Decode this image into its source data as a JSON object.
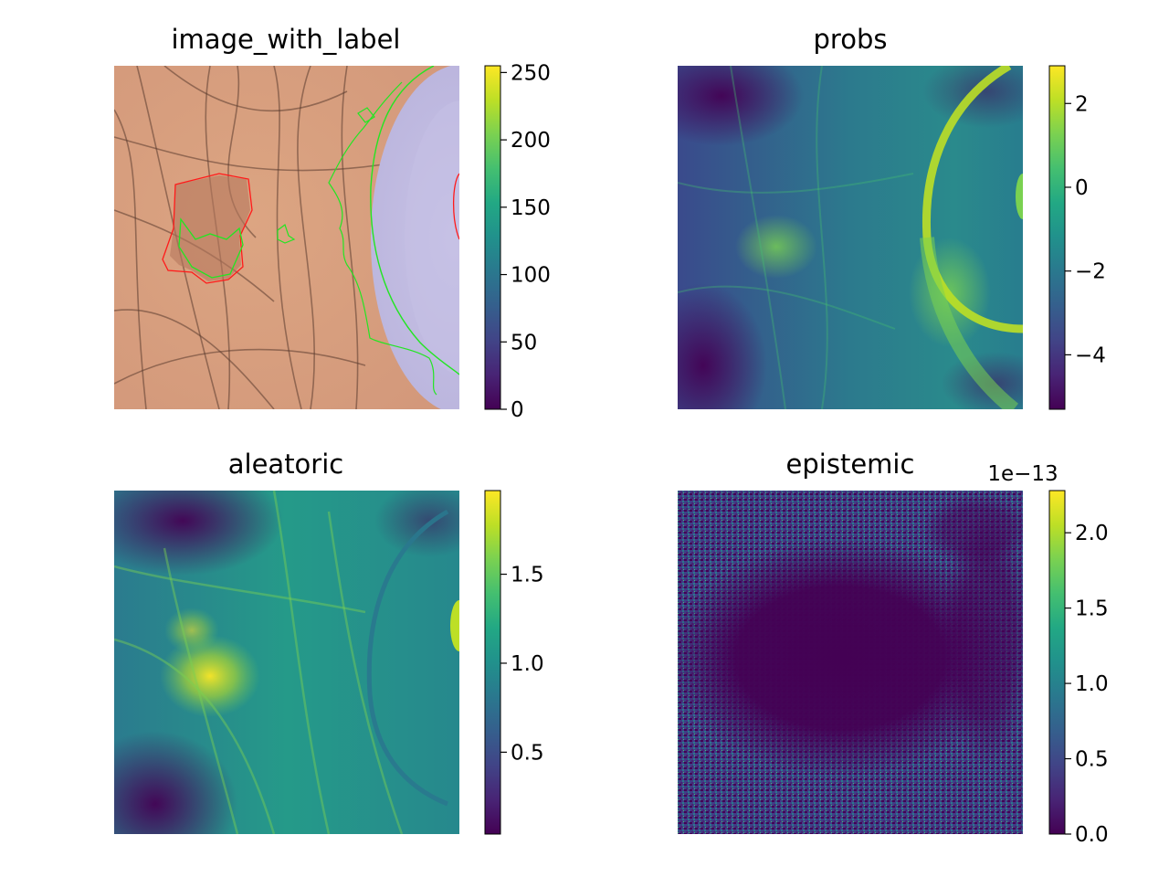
{
  "chart_data": [
    {
      "type": "heatmap",
      "title": "image_with_label",
      "colormap": "viridis",
      "axes_visible": false,
      "colorbar": {
        "range": [
          0,
          255
        ],
        "ticks": [
          0,
          50,
          100,
          150,
          200,
          250
        ],
        "tick_labels": [
          "0",
          "50",
          "100",
          "150",
          "200",
          "250"
        ]
      },
      "overlay_colors": {
        "label_contour": "#ff1a1a",
        "prediction_contour": "#22e622"
      }
    },
    {
      "type": "heatmap",
      "title": "probs",
      "colormap": "viridis",
      "axes_visible": false,
      "colorbar": {
        "range": [
          -5.3,
          2.9
        ],
        "ticks": [
          -4,
          -2,
          0,
          2
        ],
        "tick_labels": [
          "−4",
          "−2",
          "0",
          "2"
        ]
      }
    },
    {
      "type": "heatmap",
      "title": "aleatoric",
      "colormap": "viridis",
      "axes_visible": false,
      "colorbar": {
        "range": [
          0.04,
          1.97
        ],
        "ticks": [
          0.5,
          1.0,
          1.5
        ],
        "tick_labels": [
          "0.5",
          "1.0",
          "1.5"
        ]
      }
    },
    {
      "type": "heatmap",
      "title": "epistemic",
      "colormap": "viridis",
      "axes_visible": false,
      "colorbar": {
        "range": [
          0,
          2.28
        ],
        "ticks": [
          0,
          0.5,
          1.0,
          1.5,
          2.0
        ],
        "tick_labels": [
          "0.0",
          "0.5",
          "1.0",
          "1.5",
          "2.0"
        ],
        "offset_label": "1e−13"
      }
    }
  ]
}
